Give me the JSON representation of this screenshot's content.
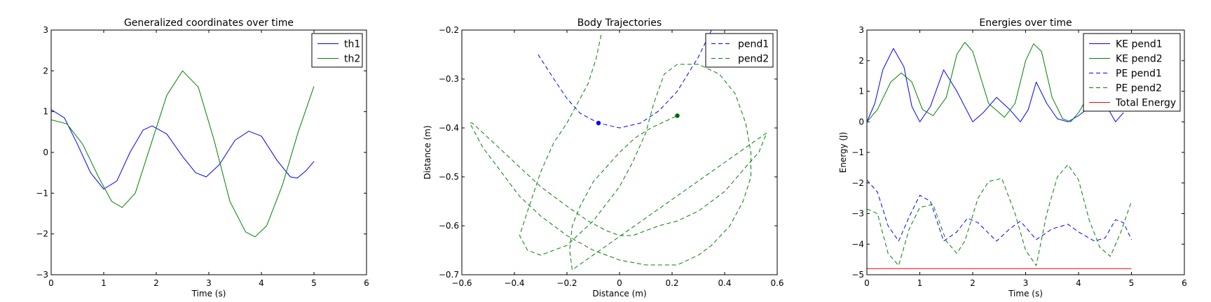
{
  "chart_data": [
    {
      "type": "line",
      "title": "Generalized coordinates over time",
      "xlabel": "Time (s)",
      "ylabel": "",
      "xlim": [
        0,
        6
      ],
      "ylim": [
        -3,
        3
      ],
      "xticks": [
        0,
        1,
        2,
        3,
        4,
        5,
        6
      ],
      "yticks": [
        -3,
        -2,
        -1,
        0,
        1,
        2,
        3
      ],
      "grid": false,
      "legend": "top-right",
      "series": [
        {
          "name": "th1",
          "color": "#0000ff",
          "dash": "solid",
          "x": [
            0,
            0.25,
            0.5,
            0.75,
            1.0,
            1.25,
            1.5,
            1.75,
            1.92,
            2.2,
            2.5,
            2.75,
            2.95,
            3.2,
            3.5,
            3.76,
            4.0,
            4.3,
            4.55,
            4.68,
            4.85,
            5.0
          ],
          "y": [
            1.05,
            0.85,
            0.2,
            -0.5,
            -0.9,
            -0.7,
            0.0,
            0.55,
            0.65,
            0.45,
            -0.1,
            -0.5,
            -0.6,
            -0.3,
            0.3,
            0.52,
            0.4,
            -0.2,
            -0.6,
            -0.63,
            -0.45,
            -0.22
          ]
        },
        {
          "name": "th2",
          "color": "#008000",
          "dash": "solid",
          "x": [
            0,
            0.3,
            0.6,
            0.9,
            1.15,
            1.35,
            1.6,
            1.9,
            2.2,
            2.5,
            2.8,
            3.1,
            3.4,
            3.7,
            3.88,
            4.1,
            4.4,
            4.7,
            5.0
          ],
          "y": [
            0.8,
            0.7,
            0.2,
            -0.6,
            -1.2,
            -1.35,
            -1.0,
            0.2,
            1.4,
            2.0,
            1.6,
            0.3,
            -1.2,
            -1.95,
            -2.07,
            -1.8,
            -0.8,
            0.5,
            1.62
          ]
        }
      ]
    },
    {
      "type": "line",
      "title": "Body Trajectories",
      "xlabel": "Distance (m)",
      "ylabel": "Distance (m)",
      "xlim": [
        -0.6,
        0.6
      ],
      "ylim": [
        -0.7,
        -0.2
      ],
      "xticks": [
        -0.6,
        -0.4,
        -0.2,
        0.0,
        0.2,
        0.4,
        0.6
      ],
      "yticks": [
        -0.7,
        -0.6,
        -0.5,
        -0.4,
        -0.3,
        -0.2
      ],
      "grid": false,
      "legend": "top-right",
      "series": [
        {
          "name": "pend1",
          "color": "#0000ff",
          "dash": "dashed",
          "x": [
            -0.31,
            -0.25,
            -0.2,
            -0.15,
            -0.08,
            0.0,
            0.08,
            0.15,
            0.22,
            0.3,
            0.35
          ],
          "y": [
            -0.25,
            -0.3,
            -0.34,
            -0.37,
            -0.39,
            -0.4,
            -0.39,
            -0.365,
            -0.325,
            -0.255,
            -0.2
          ]
        },
        {
          "name": "pend2",
          "color": "#008000",
          "dash": "dashed",
          "x": [
            -0.07,
            -0.09,
            -0.12,
            -0.16,
            -0.2,
            -0.25,
            -0.3,
            -0.35,
            -0.38,
            -0.35,
            -0.3,
            -0.2,
            -0.1,
            0.0,
            0.05,
            0.1,
            0.13,
            0.17,
            0.22,
            0.3,
            0.38,
            0.44,
            0.48,
            0.5,
            0.5,
            0.47,
            0.42,
            0.35,
            0.3,
            0.22,
            0.1,
            0.0,
            -0.1,
            -0.2,
            -0.3,
            -0.38,
            -0.45,
            -0.52,
            -0.57,
            -0.56,
            -0.5,
            -0.4,
            -0.3,
            -0.2,
            -0.12,
            -0.05,
            0.0,
            0.05,
            0.1,
            0.15,
            0.22,
            0.3,
            0.4,
            0.48,
            0.53,
            0.56,
            -0.18,
            -0.19,
            -0.18,
            -0.15,
            -0.1,
            -0.05,
            0.0,
            0.06,
            0.12,
            0.18,
            0.22
          ],
          "y": [
            -0.21,
            -0.26,
            -0.31,
            -0.35,
            -0.39,
            -0.43,
            -0.49,
            -0.57,
            -0.62,
            -0.65,
            -0.66,
            -0.64,
            -0.59,
            -0.52,
            -0.47,
            -0.41,
            -0.35,
            -0.29,
            -0.27,
            -0.27,
            -0.29,
            -0.33,
            -0.39,
            -0.45,
            -0.5,
            -0.55,
            -0.6,
            -0.64,
            -0.66,
            -0.68,
            -0.68,
            -0.67,
            -0.65,
            -0.62,
            -0.58,
            -0.54,
            -0.49,
            -0.44,
            -0.39,
            -0.39,
            -0.42,
            -0.47,
            -0.52,
            -0.56,
            -0.59,
            -0.61,
            -0.62,
            -0.62,
            -0.61,
            -0.6,
            -0.59,
            -0.57,
            -0.53,
            -0.48,
            -0.45,
            -0.41,
            -0.69,
            -0.65,
            -0.6,
            -0.56,
            -0.51,
            -0.48,
            -0.45,
            -0.42,
            -0.4,
            -0.385,
            -0.375
          ]
        }
      ],
      "markers": [
        {
          "series": "pend1",
          "x": -0.08,
          "y": -0.39,
          "color": "#0000ff"
        },
        {
          "series": "pend2",
          "x": 0.22,
          "y": -0.375,
          "color": "#006400"
        }
      ]
    },
    {
      "type": "line",
      "title": "Energies over time",
      "xlabel": "Time (s)",
      "ylabel": "Energy (J)",
      "xlim": [
        0,
        6
      ],
      "ylim": [
        -5,
        3
      ],
      "xticks": [
        0,
        1,
        2,
        3,
        4,
        5,
        6
      ],
      "yticks": [
        -5,
        -4,
        -3,
        -2,
        -1,
        0,
        1,
        2,
        3
      ],
      "grid": false,
      "legend": "top-right",
      "series": [
        {
          "name": "KE pend1",
          "color": "#0000ff",
          "dash": "solid",
          "x": [
            0,
            0.15,
            0.3,
            0.5,
            0.7,
            0.85,
            1.0,
            1.2,
            1.45,
            1.7,
            2.0,
            2.2,
            2.45,
            2.7,
            2.9,
            3.05,
            3.2,
            3.4,
            3.6,
            3.8,
            4.0,
            4.3,
            4.5,
            4.7,
            4.85
          ],
          "y": [
            0.0,
            0.6,
            1.7,
            2.4,
            1.8,
            0.5,
            0.0,
            0.5,
            1.7,
            1.0,
            0.0,
            0.3,
            0.8,
            0.4,
            0.0,
            0.4,
            1.3,
            0.6,
            0.1,
            0.0,
            0.2,
            0.6,
            0.6,
            0.0,
            0.3
          ]
        },
        {
          "name": "KE pend2",
          "color": "#008000",
          "dash": "solid",
          "x": [
            0,
            0.2,
            0.45,
            0.65,
            0.85,
            1.05,
            1.25,
            1.5,
            1.7,
            1.85,
            2.0,
            2.3,
            2.6,
            2.8,
            3.0,
            3.15,
            3.3,
            3.5,
            3.7,
            3.85,
            4.0,
            4.3,
            4.6,
            4.8,
            5.0
          ],
          "y": [
            0.0,
            0.4,
            1.3,
            1.6,
            1.3,
            0.4,
            0.2,
            0.8,
            2.2,
            2.6,
            2.3,
            0.6,
            0.15,
            0.6,
            2.0,
            2.55,
            2.3,
            0.8,
            0.1,
            0.0,
            0.3,
            1.2,
            2.0,
            1.5,
            0.7
          ]
        },
        {
          "name": "PE pend1",
          "color": "#0000ff",
          "dash": "dashed",
          "x": [
            0,
            0.2,
            0.4,
            0.6,
            0.8,
            1.0,
            1.2,
            1.45,
            1.7,
            1.9,
            2.1,
            2.45,
            2.7,
            2.9,
            3.2,
            3.5,
            3.8,
            4.0,
            4.3,
            4.5,
            4.7,
            4.85,
            5.0
          ],
          "y": [
            -1.9,
            -2.3,
            -3.4,
            -3.9,
            -3.1,
            -2.4,
            -2.6,
            -3.9,
            -3.6,
            -3.15,
            -3.3,
            -3.9,
            -3.5,
            -3.25,
            -3.85,
            -3.5,
            -3.35,
            -3.6,
            -3.9,
            -3.8,
            -3.2,
            -3.3,
            -3.85
          ]
        },
        {
          "name": "PE pend2",
          "color": "#008000",
          "dash": "dashed",
          "x": [
            0,
            0.2,
            0.4,
            0.6,
            0.8,
            1.0,
            1.25,
            1.5,
            1.7,
            1.85,
            2.1,
            2.3,
            2.55,
            2.8,
            3.0,
            3.2,
            3.4,
            3.6,
            3.8,
            4.0,
            4.2,
            4.4,
            4.6,
            4.8,
            5.0
          ],
          "y": [
            -2.85,
            -3.0,
            -4.3,
            -4.7,
            -3.5,
            -2.8,
            -2.7,
            -3.9,
            -4.3,
            -3.9,
            -2.5,
            -1.95,
            -1.85,
            -3.0,
            -4.2,
            -4.7,
            -3.0,
            -1.8,
            -1.4,
            -1.9,
            -3.2,
            -4.1,
            -4.4,
            -3.6,
            -2.6
          ]
        },
        {
          "name": "Total Energy",
          "color": "#ff0000",
          "dash": "solid",
          "x": [
            0,
            5.0
          ],
          "y": [
            -4.8,
            -4.8
          ]
        }
      ]
    }
  ]
}
